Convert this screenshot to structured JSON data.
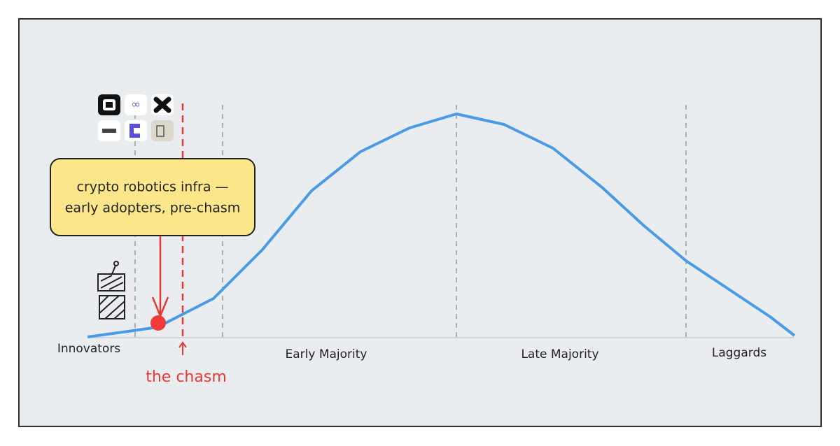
{
  "segments": [
    {
      "label": "Innovators"
    },
    {
      "label": "Early Majority"
    },
    {
      "label": "Late Majority"
    },
    {
      "label": "Laggards"
    }
  ],
  "callout": {
    "lines": [
      "crypto robotics infra —",
      "early adopters, pre-chasm"
    ]
  },
  "chasm": {
    "label": "the chasm"
  }
}
